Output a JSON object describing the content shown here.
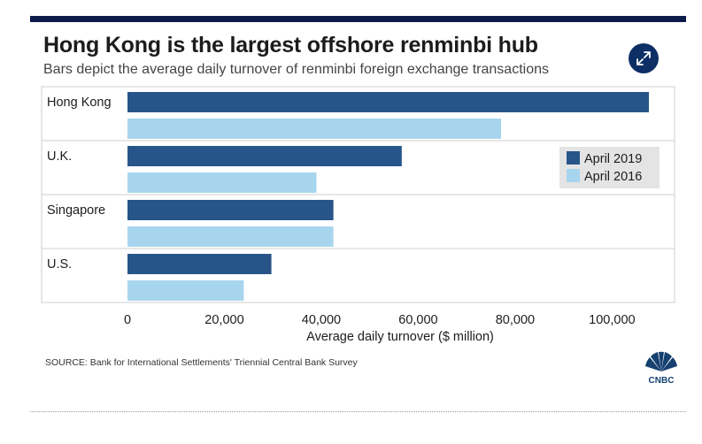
{
  "header": {
    "title": "Hong Kong is the largest offshore renminbi hub",
    "subtitle": "Bars depict the average daily turnover of renminbi foreign exchange transactions"
  },
  "icons": {
    "expand": "expand-arrows-icon",
    "logo": "cnbc-peacock-logo"
  },
  "logo_text": "CNBC",
  "source": "SOURCE: Bank for International Settlements' Triennial Central Bank Survey",
  "colors": {
    "april_2019": "#27558a",
    "april_2016": "#a8d5ee",
    "topbar": "#0d1b4b",
    "button": "#0d2f66"
  },
  "chart_data": {
    "type": "bar",
    "orientation": "horizontal",
    "categories": [
      "Hong Kong",
      "U.K.",
      "Singapore",
      "U.S."
    ],
    "series": [
      {
        "name": "April 2019",
        "values": [
          107600,
          56600,
          42500,
          29700
        ]
      },
      {
        "name": "April 2016",
        "values": [
          77100,
          39000,
          42500,
          24000
        ]
      }
    ],
    "xlabel": "Average daily turnover ($ million)",
    "xlim": [
      0,
      112000
    ],
    "xticks": [
      0,
      20000,
      40000,
      60000,
      80000,
      100000
    ],
    "xtick_labels": [
      "0",
      "20,000",
      "40,000",
      "60,000",
      "80,000",
      "100,000"
    ],
    "legend": "top-right",
    "grid": false
  }
}
